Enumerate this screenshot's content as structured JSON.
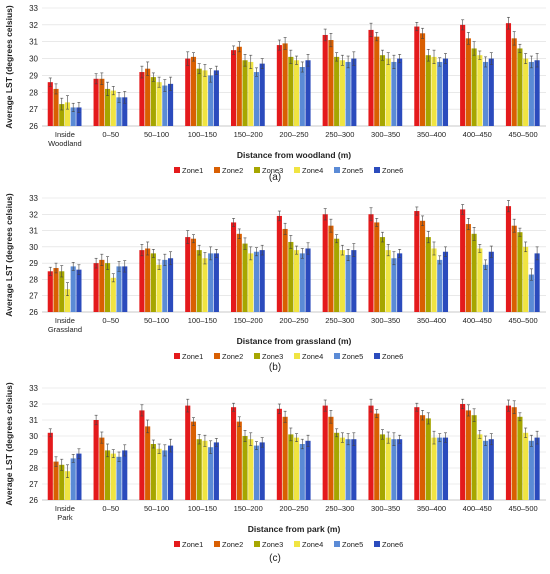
{
  "colors": {
    "Zone1": "#e41a1c",
    "Zone2": "#d95f02",
    "Zone3": "#a6a600",
    "Zone4": "#f0e442",
    "Zone5": "#5b8bd6",
    "Zone6": "#2b4bbd"
  },
  "chart_data": [
    {
      "type": "bar",
      "panel_label": "(a)",
      "xlabel": "Distance from woodland (m)",
      "ylabel": "Average LST (degrees celsius)",
      "ylim": [
        26,
        33
      ],
      "yticks": [
        26,
        27,
        28,
        29,
        30,
        31,
        32,
        33
      ],
      "legend_position": "bottom",
      "error_bars": true,
      "categories": [
        "Inside Woodland",
        "0–50",
        "50–100",
        "100–150",
        "150–200",
        "200–250",
        "250–300",
        "300–350",
        "350–400",
        "400–450",
        "450–500"
      ],
      "series": [
        {
          "name": "Zone1",
          "values": [
            28.6,
            28.8,
            29.2,
            30.0,
            30.5,
            30.8,
            31.4,
            31.7,
            31.9,
            32.0,
            32.1
          ]
        },
        {
          "name": "Zone2",
          "values": [
            28.2,
            28.8,
            29.4,
            30.1,
            30.7,
            30.9,
            31.1,
            31.3,
            31.5,
            31.2,
            31.2
          ]
        },
        {
          "name": "Zone3",
          "values": [
            27.3,
            28.2,
            28.9,
            29.4,
            29.9,
            30.1,
            30.1,
            30.2,
            30.2,
            30.6,
            30.6
          ]
        },
        {
          "name": "Zone4",
          "values": [
            27.4,
            28.1,
            28.6,
            29.3,
            29.8,
            29.9,
            29.9,
            30.0,
            30.1,
            30.2,
            30.0
          ]
        },
        {
          "name": "Zone5",
          "values": [
            27.1,
            27.7,
            28.4,
            29.0,
            29.2,
            29.5,
            29.8,
            29.8,
            29.8,
            29.8,
            29.8
          ]
        },
        {
          "name": "Zone6",
          "values": [
            27.1,
            27.7,
            28.5,
            29.3,
            29.7,
            29.9,
            30.0,
            30.0,
            30.0,
            30.0,
            29.9
          ]
        }
      ]
    },
    {
      "type": "bar",
      "panel_label": "(b)",
      "xlabel": "Distance from grassland (m)",
      "ylabel": "Average LST (degrees celsius)",
      "ylim": [
        26,
        33
      ],
      "yticks": [
        26,
        27,
        28,
        29,
        30,
        31,
        32,
        33
      ],
      "legend_position": "bottom",
      "error_bars": true,
      "categories": [
        "Inside Grassland",
        "0–50",
        "50–100",
        "100–150",
        "150–200",
        "200–250",
        "250–300",
        "300–350",
        "350–400",
        "400–450",
        "450–500"
      ],
      "series": [
        {
          "name": "Zone1",
          "values": [
            28.5,
            29.0,
            29.8,
            30.6,
            31.5,
            31.9,
            32.0,
            32.0,
            32.2,
            32.3,
            32.5
          ]
        },
        {
          "name": "Zone2",
          "values": [
            28.7,
            29.2,
            29.9,
            30.5,
            30.8,
            31.1,
            31.3,
            31.5,
            31.6,
            31.4,
            31.3
          ]
        },
        {
          "name": "Zone3",
          "values": [
            28.5,
            29.0,
            29.6,
            29.8,
            30.2,
            30.3,
            30.5,
            30.6,
            30.6,
            30.8,
            30.9
          ]
        },
        {
          "name": "Zone4",
          "values": [
            27.4,
            28.1,
            28.9,
            29.3,
            29.6,
            29.8,
            29.8,
            29.8,
            29.9,
            29.9,
            30.0
          ]
        },
        {
          "name": "Zone5",
          "values": [
            28.8,
            28.8,
            29.2,
            29.6,
            29.7,
            29.6,
            29.5,
            29.3,
            29.2,
            28.9,
            28.3
          ]
        },
        {
          "name": "Zone6",
          "values": [
            28.6,
            28.8,
            29.3,
            29.6,
            29.8,
            29.9,
            29.8,
            29.6,
            29.7,
            29.7,
            29.6
          ]
        }
      ]
    },
    {
      "type": "bar",
      "panel_label": "(c)",
      "xlabel": "Distance from park (m)",
      "ylabel": "Average LST (degrees celsius)",
      "ylim": [
        26,
        33
      ],
      "yticks": [
        26,
        27,
        28,
        29,
        30,
        31,
        32,
        33
      ],
      "legend_position": "bottom",
      "error_bars": true,
      "categories": [
        "Inside Park",
        "0–50",
        "50–100",
        "100–150",
        "150–200",
        "200–250",
        "250–300",
        "300–350",
        "350–400",
        "400–450",
        "450–500"
      ],
      "series": [
        {
          "name": "Zone1",
          "values": [
            30.2,
            31.0,
            31.6,
            31.9,
            31.8,
            31.7,
            31.9,
            31.9,
            31.8,
            32.0,
            31.9
          ]
        },
        {
          "name": "Zone2",
          "values": [
            28.4,
            29.9,
            30.6,
            30.9,
            30.9,
            31.2,
            31.2,
            31.4,
            31.3,
            31.6,
            31.8
          ]
        },
        {
          "name": "Zone3",
          "values": [
            28.2,
            29.1,
            29.5,
            29.8,
            30.0,
            30.1,
            30.2,
            30.1,
            31.1,
            31.3,
            31.2
          ]
        },
        {
          "name": "Zone4",
          "values": [
            27.8,
            28.9,
            29.2,
            29.7,
            29.8,
            29.9,
            29.9,
            29.9,
            29.9,
            30.1,
            30.2
          ]
        },
        {
          "name": "Zone5",
          "values": [
            28.6,
            28.7,
            29.1,
            29.3,
            29.4,
            29.5,
            29.8,
            29.8,
            29.9,
            29.7,
            29.7
          ]
        },
        {
          "name": "Zone6",
          "values": [
            28.9,
            29.1,
            29.4,
            29.6,
            29.6,
            29.7,
            29.8,
            29.8,
            29.9,
            29.8,
            29.9
          ]
        }
      ]
    }
  ]
}
